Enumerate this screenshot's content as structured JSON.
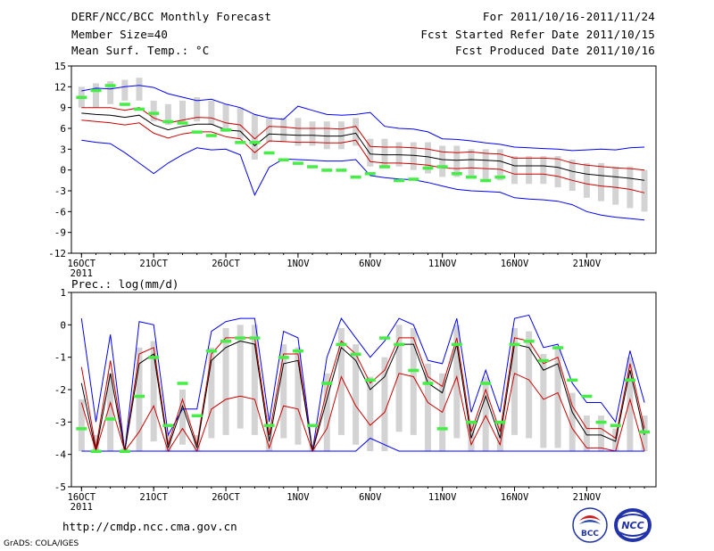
{
  "header": {
    "title": "DERF/NCC/BCC Monthly Forecast",
    "member_size": "Member Size=40",
    "variable_label": "Mean Surf. Temp.: °C",
    "period": "For 2011/10/16-2011/11/24",
    "fcst_started": "Fcst Started Refer Date 2011/10/15",
    "fcst_produced": "Fcst Produced Date 2011/10/16"
  },
  "footer": {
    "url": "http://cmdp.ncc.cma.gov.cn",
    "credit": "GrADS: COLA/IGES",
    "logo_left": "BCC",
    "logo_right": "NCC"
  },
  "colors": {
    "envelope": "#0000ff",
    "quartile": "#cc0000",
    "median": "#000000",
    "box": "#d3d3d3",
    "observed": "#44ee44"
  },
  "chart_data": [
    {
      "type": "line",
      "title": "Mean Surf. Temp.: °C",
      "xlabel": "",
      "ylabel": "°C",
      "x_ticks": [
        "16OCT",
        "21OCT",
        "26OCT",
        "1NOV",
        "6NOV",
        "11NOV",
        "16NOV",
        "21NOV"
      ],
      "x_year": "2011",
      "ylim": [
        -12,
        15
      ],
      "y_ticks": [
        -12,
        -9,
        -6,
        -3,
        0,
        3,
        6,
        9,
        12,
        15
      ],
      "days": 40,
      "series": [
        {
          "name": "max",
          "color": "blue",
          "values": [
            11.4,
            11.8,
            11.7,
            12.0,
            12.2,
            11.9,
            11.0,
            10.5,
            10.0,
            10.2,
            9.5,
            9.0,
            8.0,
            7.5,
            7.3,
            9.2,
            8.6,
            8.0,
            7.9,
            8.0,
            8.3,
            6.3,
            6.0,
            5.9,
            5.5,
            4.5,
            4.4,
            4.2,
            3.9,
            3.7,
            3.3,
            3.2,
            3.1,
            3.0,
            2.8,
            2.9,
            3.0,
            2.9,
            3.2,
            3.3
          ]
        },
        {
          "name": "q75",
          "color": "red",
          "values": [
            9.0,
            9.0,
            9.0,
            8.6,
            9.0,
            7.5,
            6.8,
            7.2,
            7.6,
            7.5,
            6.8,
            6.5,
            4.5,
            6.3,
            6.2,
            6.0,
            6.0,
            6.0,
            5.9,
            6.3,
            3.4,
            3.3,
            3.3,
            3.2,
            3.0,
            2.6,
            2.5,
            2.6,
            2.4,
            2.3,
            1.7,
            1.7,
            1.7,
            1.6,
            1.0,
            0.7,
            0.5,
            0.3,
            0.2,
            0.0
          ]
        },
        {
          "name": "median",
          "color": "black",
          "values": [
            8.2,
            8.0,
            7.9,
            7.6,
            7.9,
            6.5,
            5.8,
            6.3,
            6.6,
            6.6,
            5.8,
            5.6,
            3.5,
            5.2,
            5.1,
            5.0,
            5.0,
            4.9,
            4.9,
            5.3,
            2.3,
            2.2,
            2.2,
            2.1,
            1.9,
            1.5,
            1.4,
            1.5,
            1.4,
            1.3,
            0.6,
            0.6,
            0.6,
            0.4,
            -0.2,
            -0.6,
            -0.8,
            -1.0,
            -1.2,
            -1.5
          ]
        },
        {
          "name": "q25",
          "color": "red",
          "values": [
            7.2,
            7.0,
            6.8,
            6.5,
            6.8,
            5.3,
            4.6,
            5.2,
            5.5,
            5.5,
            4.8,
            4.5,
            2.5,
            4.2,
            4.1,
            4.0,
            4.0,
            3.9,
            3.9,
            4.3,
            1.2,
            1.0,
            1.0,
            0.9,
            0.7,
            0.3,
            0.2,
            0.3,
            0.2,
            0.1,
            -0.6,
            -0.6,
            -0.6,
            -0.9,
            -1.5,
            -2.0,
            -2.3,
            -2.5,
            -2.8,
            -3.3
          ]
        },
        {
          "name": "min",
          "color": "blue",
          "values": [
            4.3,
            4.0,
            3.8,
            2.5,
            1.0,
            -0.5,
            1.0,
            2.2,
            3.2,
            2.9,
            3.0,
            2.2,
            -3.6,
            0.4,
            1.6,
            1.5,
            1.4,
            1.3,
            1.3,
            1.5,
            -0.8,
            -1.1,
            -1.3,
            -1.4,
            -1.8,
            -2.3,
            -2.8,
            -3.0,
            -3.1,
            -3.2,
            -4.0,
            -4.2,
            -4.3,
            -4.5,
            -5.0,
            -6.0,
            -6.5,
            -6.8,
            -7.0,
            -7.2
          ]
        }
      ],
      "boxes": [
        {
          "low": 9.0,
          "high": 12.0
        },
        {
          "low": 9.0,
          "high": 12.5
        },
        {
          "low": 9.5,
          "high": 12.8
        },
        {
          "low": 10.0,
          "high": 13.0
        },
        {
          "low": 10.0,
          "high": 13.3
        },
        {
          "low": 7.0,
          "high": 10.0
        },
        {
          "low": 6.5,
          "high": 9.5
        },
        {
          "low": 7.0,
          "high": 10.0
        },
        {
          "low": 7.0,
          "high": 10.5
        },
        {
          "low": 6.5,
          "high": 10.0
        },
        {
          "low": 5.5,
          "high": 9.5
        },
        {
          "low": 4.5,
          "high": 9.0
        },
        {
          "low": 1.5,
          "high": 8.0
        },
        {
          "low": 4.0,
          "high": 7.5
        },
        {
          "low": 4.0,
          "high": 7.5
        },
        {
          "low": 3.5,
          "high": 7.5
        },
        {
          "low": 3.5,
          "high": 7.0
        },
        {
          "low": 3.0,
          "high": 7.0
        },
        {
          "low": 3.0,
          "high": 7.0
        },
        {
          "low": 3.5,
          "high": 7.5
        },
        {
          "low": 0.5,
          "high": 4.5
        },
        {
          "low": 0.5,
          "high": 4.5
        },
        {
          "low": 0.5,
          "high": 4.0
        },
        {
          "low": 0.0,
          "high": 4.0
        },
        {
          "low": -0.5,
          "high": 4.0
        },
        {
          "low": -1.0,
          "high": 3.5
        },
        {
          "low": -1.0,
          "high": 3.5
        },
        {
          "low": -1.0,
          "high": 3.0
        },
        {
          "low": -1.5,
          "high": 3.0
        },
        {
          "low": -1.5,
          "high": 3.0
        },
        {
          "low": -2.0,
          "high": 2.0
        },
        {
          "low": -2.0,
          "high": 2.0
        },
        {
          "low": -2.0,
          "high": 2.0
        },
        {
          "low": -2.5,
          "high": 2.0
        },
        {
          "low": -3.0,
          "high": 1.5
        },
        {
          "low": -4.0,
          "high": 1.0
        },
        {
          "low": -4.5,
          "high": 1.0
        },
        {
          "low": -5.0,
          "high": 0.5
        },
        {
          "low": -5.5,
          "high": 0.5
        },
        {
          "low": -6.0,
          "high": 0.0
        }
      ],
      "observed": [
        10.5,
        11.5,
        12.2,
        9.5,
        8.8,
        8.2,
        7.0,
        6.8,
        5.5,
        5.0,
        5.8,
        4.0,
        4.0,
        2.5,
        1.5,
        1.0,
        0.5,
        0.0,
        0.0,
        -1.0,
        -0.5,
        0.5,
        -1.5,
        -1.3,
        0.3,
        0.5,
        -0.5,
        -1.0,
        -1.5,
        -1.0
      ]
    },
    {
      "type": "line",
      "title": "Prec.: log(mm/d)",
      "xlabel": "",
      "ylabel": "log(mm/d)",
      "x_ticks": [
        "16OCT",
        "21OCT",
        "26OCT",
        "1NOV",
        "6NOV",
        "11NOV",
        "16NOV",
        "21NOV"
      ],
      "x_year": "2011",
      "ylim": [
        -5,
        1
      ],
      "y_ticks": [
        -5,
        -4,
        -3,
        -2,
        -1,
        0,
        1
      ],
      "days": 40,
      "series": [
        {
          "name": "max",
          "color": "blue",
          "values": [
            0.2,
            -3.0,
            -0.3,
            -3.9,
            0.1,
            0.0,
            -3.4,
            -2.6,
            -2.6,
            -0.2,
            0.1,
            0.2,
            0.2,
            -3.0,
            -0.2,
            -0.4,
            -3.9,
            -1.0,
            0.2,
            -0.4,
            -1.0,
            -0.5,
            0.2,
            0.0,
            -1.1,
            -1.2,
            0.2,
            -2.7,
            -1.4,
            -2.7,
            0.2,
            0.3,
            -0.7,
            -0.6,
            -1.8,
            -2.4,
            -2.4,
            -3.0,
            -0.8,
            -2.4
          ]
        },
        {
          "name": "q75",
          "color": "red",
          "values": [
            -1.3,
            -3.8,
            -1.1,
            -3.9,
            -0.9,
            -0.7,
            -3.7,
            -2.3,
            -3.7,
            -0.9,
            -0.4,
            -0.4,
            -0.4,
            -3.4,
            -0.9,
            -0.9,
            -3.9,
            -2.0,
            -0.5,
            -0.9,
            -1.8,
            -1.4,
            -0.4,
            -0.4,
            -1.6,
            -1.9,
            -0.4,
            -3.3,
            -2.0,
            -3.3,
            -0.4,
            -0.5,
            -1.2,
            -1.0,
            -2.5,
            -3.2,
            -3.2,
            -3.5,
            -1.2,
            -3.2
          ]
        },
        {
          "name": "median",
          "color": "black",
          "values": [
            -1.8,
            -3.9,
            -1.5,
            -3.9,
            -1.2,
            -0.9,
            -3.8,
            -2.5,
            -3.8,
            -1.1,
            -0.7,
            -0.5,
            -0.6,
            -3.6,
            -1.2,
            -1.1,
            -3.9,
            -2.3,
            -0.7,
            -1.1,
            -2.0,
            -1.6,
            -0.6,
            -0.6,
            -1.8,
            -2.1,
            -0.6,
            -3.5,
            -2.2,
            -3.5,
            -0.6,
            -0.7,
            -1.4,
            -1.2,
            -2.7,
            -3.4,
            -3.4,
            -3.6,
            -1.4,
            -3.4
          ]
        },
        {
          "name": "q25",
          "color": "red",
          "values": [
            -2.4,
            -3.9,
            -2.4,
            -3.9,
            -3.3,
            -2.5,
            -3.9,
            -3.2,
            -3.9,
            -2.6,
            -2.3,
            -2.2,
            -2.3,
            -3.8,
            -2.5,
            -2.6,
            -3.9,
            -3.2,
            -1.6,
            -2.5,
            -3.1,
            -2.7,
            -1.5,
            -1.6,
            -2.4,
            -2.7,
            -1.6,
            -3.7,
            -2.8,
            -3.7,
            -1.5,
            -1.7,
            -2.3,
            -2.1,
            -3.2,
            -3.8,
            -3.8,
            -3.9,
            -2.3,
            -3.9
          ]
        },
        {
          "name": "min",
          "color": "blue",
          "values": [
            -3.9,
            -3.9,
            -3.9,
            -3.9,
            -3.9,
            -3.9,
            -3.9,
            -3.9,
            -3.9,
            -3.9,
            -3.9,
            -3.9,
            -3.9,
            -3.9,
            -3.9,
            -3.9,
            -3.9,
            -3.9,
            -3.9,
            -3.9,
            -3.5,
            -3.7,
            -3.9,
            -3.9,
            -3.9,
            -3.9,
            -3.9,
            -3.9,
            -3.9,
            -3.9,
            -3.9,
            -3.9,
            -3.9,
            -3.9,
            -3.9,
            -3.9,
            -3.9,
            -3.9,
            -3.9,
            -3.9
          ]
        }
      ],
      "boxes": [
        {
          "low": -3.9,
          "high": -2.3
        },
        {
          "low": -3.9,
          "high": -3.4
        },
        {
          "low": -3.9,
          "high": -1.5
        },
        {
          "low": -3.9,
          "high": -3.8
        },
        {
          "low": -3.9,
          "high": -0.7
        },
        {
          "low": -3.6,
          "high": -0.5
        },
        {
          "low": -3.9,
          "high": -3.4
        },
        {
          "low": -3.7,
          "high": -2.0
        },
        {
          "low": -3.9,
          "high": -3.4
        },
        {
          "low": -3.5,
          "high": -0.7
        },
        {
          "low": -3.4,
          "high": -0.1
        },
        {
          "low": -3.2,
          "high": 0.0
        },
        {
          "low": -3.4,
          "high": 0.0
        },
        {
          "low": -3.9,
          "high": -3.1
        },
        {
          "low": -3.5,
          "high": -0.6
        },
        {
          "low": -3.7,
          "high": -0.7
        },
        {
          "low": -3.9,
          "high": -3.7
        },
        {
          "low": -3.9,
          "high": -1.5
        },
        {
          "low": -3.4,
          "high": -0.1
        },
        {
          "low": -3.7,
          "high": -0.6
        },
        {
          "low": -3.9,
          "high": -1.6
        },
        {
          "low": -3.9,
          "high": -1.0
        },
        {
          "low": -3.3,
          "high": 0.0
        },
        {
          "low": -3.4,
          "high": -0.1
        },
        {
          "low": -3.9,
          "high": -1.2
        },
        {
          "low": -3.9,
          "high": -1.5
        },
        {
          "low": -3.5,
          "high": 0.0
        },
        {
          "low": -3.9,
          "high": -3.0
        },
        {
          "low": -3.9,
          "high": -1.6
        },
        {
          "low": -3.9,
          "high": -3.0
        },
        {
          "low": -3.4,
          "high": -0.1
        },
        {
          "low": -3.5,
          "high": -0.2
        },
        {
          "low": -3.8,
          "high": -0.9
        },
        {
          "low": -3.8,
          "high": -0.7
        },
        {
          "low": -3.9,
          "high": -2.1
        },
        {
          "low": -3.9,
          "high": -2.8
        },
        {
          "low": -3.9,
          "high": -2.8
        },
        {
          "low": -3.9,
          "high": -3.2
        },
        {
          "low": -3.9,
          "high": -1.0
        },
        {
          "low": -3.9,
          "high": -2.8
        }
      ],
      "observed": [
        -3.2,
        -3.9,
        -2.9,
        -3.9,
        -2.2,
        -1.0,
        -3.1,
        -1.8,
        -2.8,
        -0.8,
        -0.5,
        -0.4,
        -0.4,
        -3.1,
        -1.0,
        -0.8,
        -3.1,
        -1.8,
        -0.6,
        -0.9,
        -1.7,
        -0.4,
        -0.6,
        -1.4,
        -1.8,
        -3.2,
        -0.6,
        -3.0,
        -1.8,
        -3.0,
        -0.6,
        -0.5,
        -1.1,
        -0.7,
        -1.7,
        -2.2,
        -3.0,
        -3.1,
        -1.7,
        -3.3
      ]
    }
  ]
}
